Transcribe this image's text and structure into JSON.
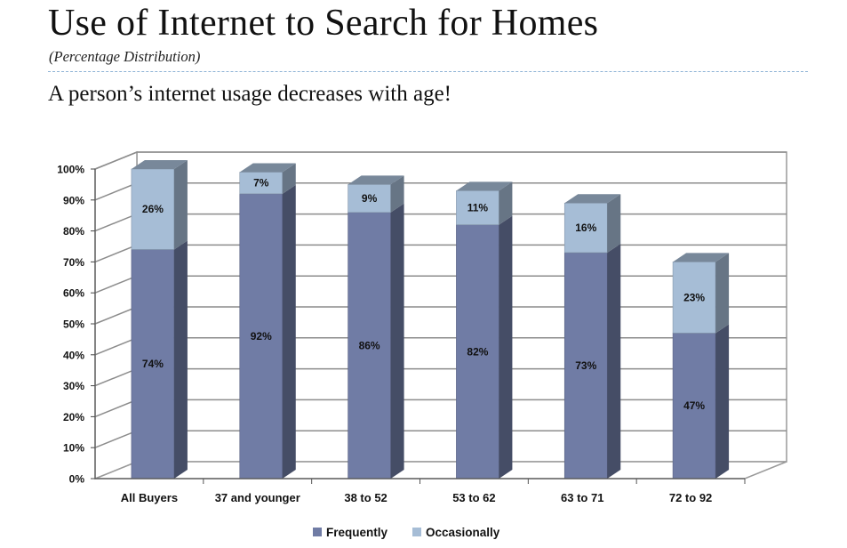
{
  "header": {
    "title": "Use of Internet to Search for Homes",
    "subtitle": "(Percentage Distribution)",
    "headline": "A person’s internet usage decreases with age!"
  },
  "chart_data": {
    "type": "bar",
    "stacked": true,
    "three_d": true,
    "categories": [
      "All Buyers",
      "37 and younger",
      "38 to 52",
      "53 to 62",
      "63 to 71",
      "72 to 92"
    ],
    "series": [
      {
        "name": "Frequently",
        "values": [
          74,
          92,
          86,
          82,
          73,
          47
        ],
        "labels": [
          "74%",
          "92%",
          "86%",
          "82%",
          "73%",
          "47%"
        ],
        "color": "#707ca5"
      },
      {
        "name": "Occasionally",
        "values": [
          26,
          7,
          9,
          11,
          16,
          23
        ],
        "labels": [
          "26%",
          "7%",
          "9%",
          "11%",
          "16%",
          "23%"
        ],
        "color": "#a6bdd6"
      }
    ],
    "ylim": [
      0,
      100
    ],
    "yticks": [
      "0%",
      "10%",
      "20%",
      "30%",
      "40%",
      "50%",
      "60%",
      "70%",
      "80%",
      "90%",
      "100%"
    ],
    "grid": true,
    "legend": "bottom"
  }
}
